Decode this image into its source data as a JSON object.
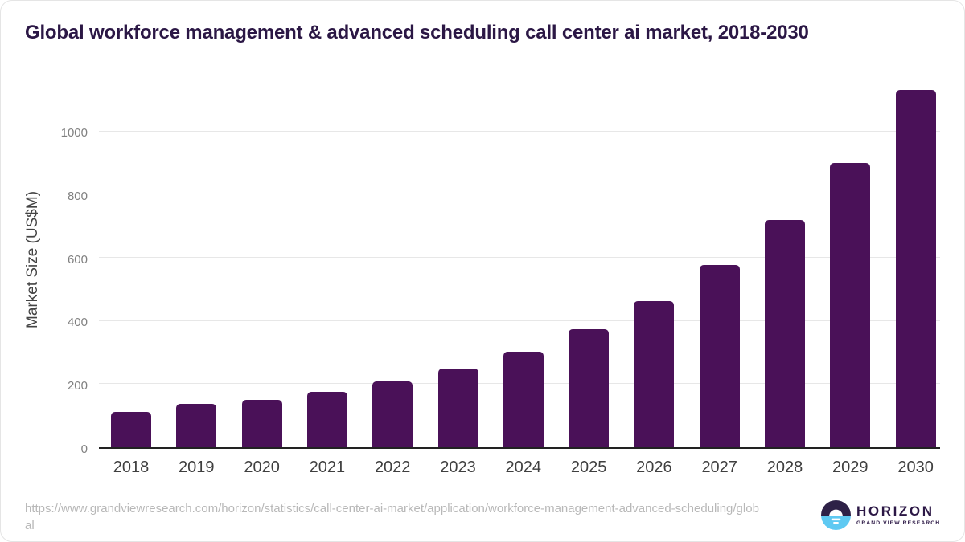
{
  "chart_data": {
    "type": "bar",
    "title": "Global workforce management & advanced scheduling call center ai market, 2018-2030",
    "categories": [
      "2018",
      "2019",
      "2020",
      "2021",
      "2022",
      "2023",
      "2024",
      "2025",
      "2026",
      "2027",
      "2028",
      "2029",
      "2030"
    ],
    "values": [
      113,
      137,
      150,
      175,
      208,
      250,
      303,
      374,
      462,
      576,
      720,
      900,
      1132
    ],
    "xlabel": "",
    "ylabel": "Market Size (US$M)",
    "ylim": [
      0,
      1140
    ],
    "yticks": [
      0,
      200,
      400,
      600,
      800,
      1000
    ],
    "grid": true,
    "legend": false,
    "bar_color": "#4a1158"
  },
  "footer": {
    "source_url": "https://www.grandviewresearch.com/horizon/statistics/call-center-ai-market/application/workforce-management-advanced-scheduling/global",
    "logo": {
      "name": "HORIZON",
      "subtitle": "GRAND VIEW RESEARCH"
    }
  },
  "colors": {
    "bar": "#4a1158",
    "title_text": "#2b1745",
    "gridline": "#e7e7e7",
    "axis_line": "#222222",
    "y_tick_label": "#808080",
    "x_tick_label": "#3f3f3f",
    "url_text": "#b8b8b8",
    "logo_dark": "#2e2147",
    "logo_blue": "#5ec9f2"
  }
}
